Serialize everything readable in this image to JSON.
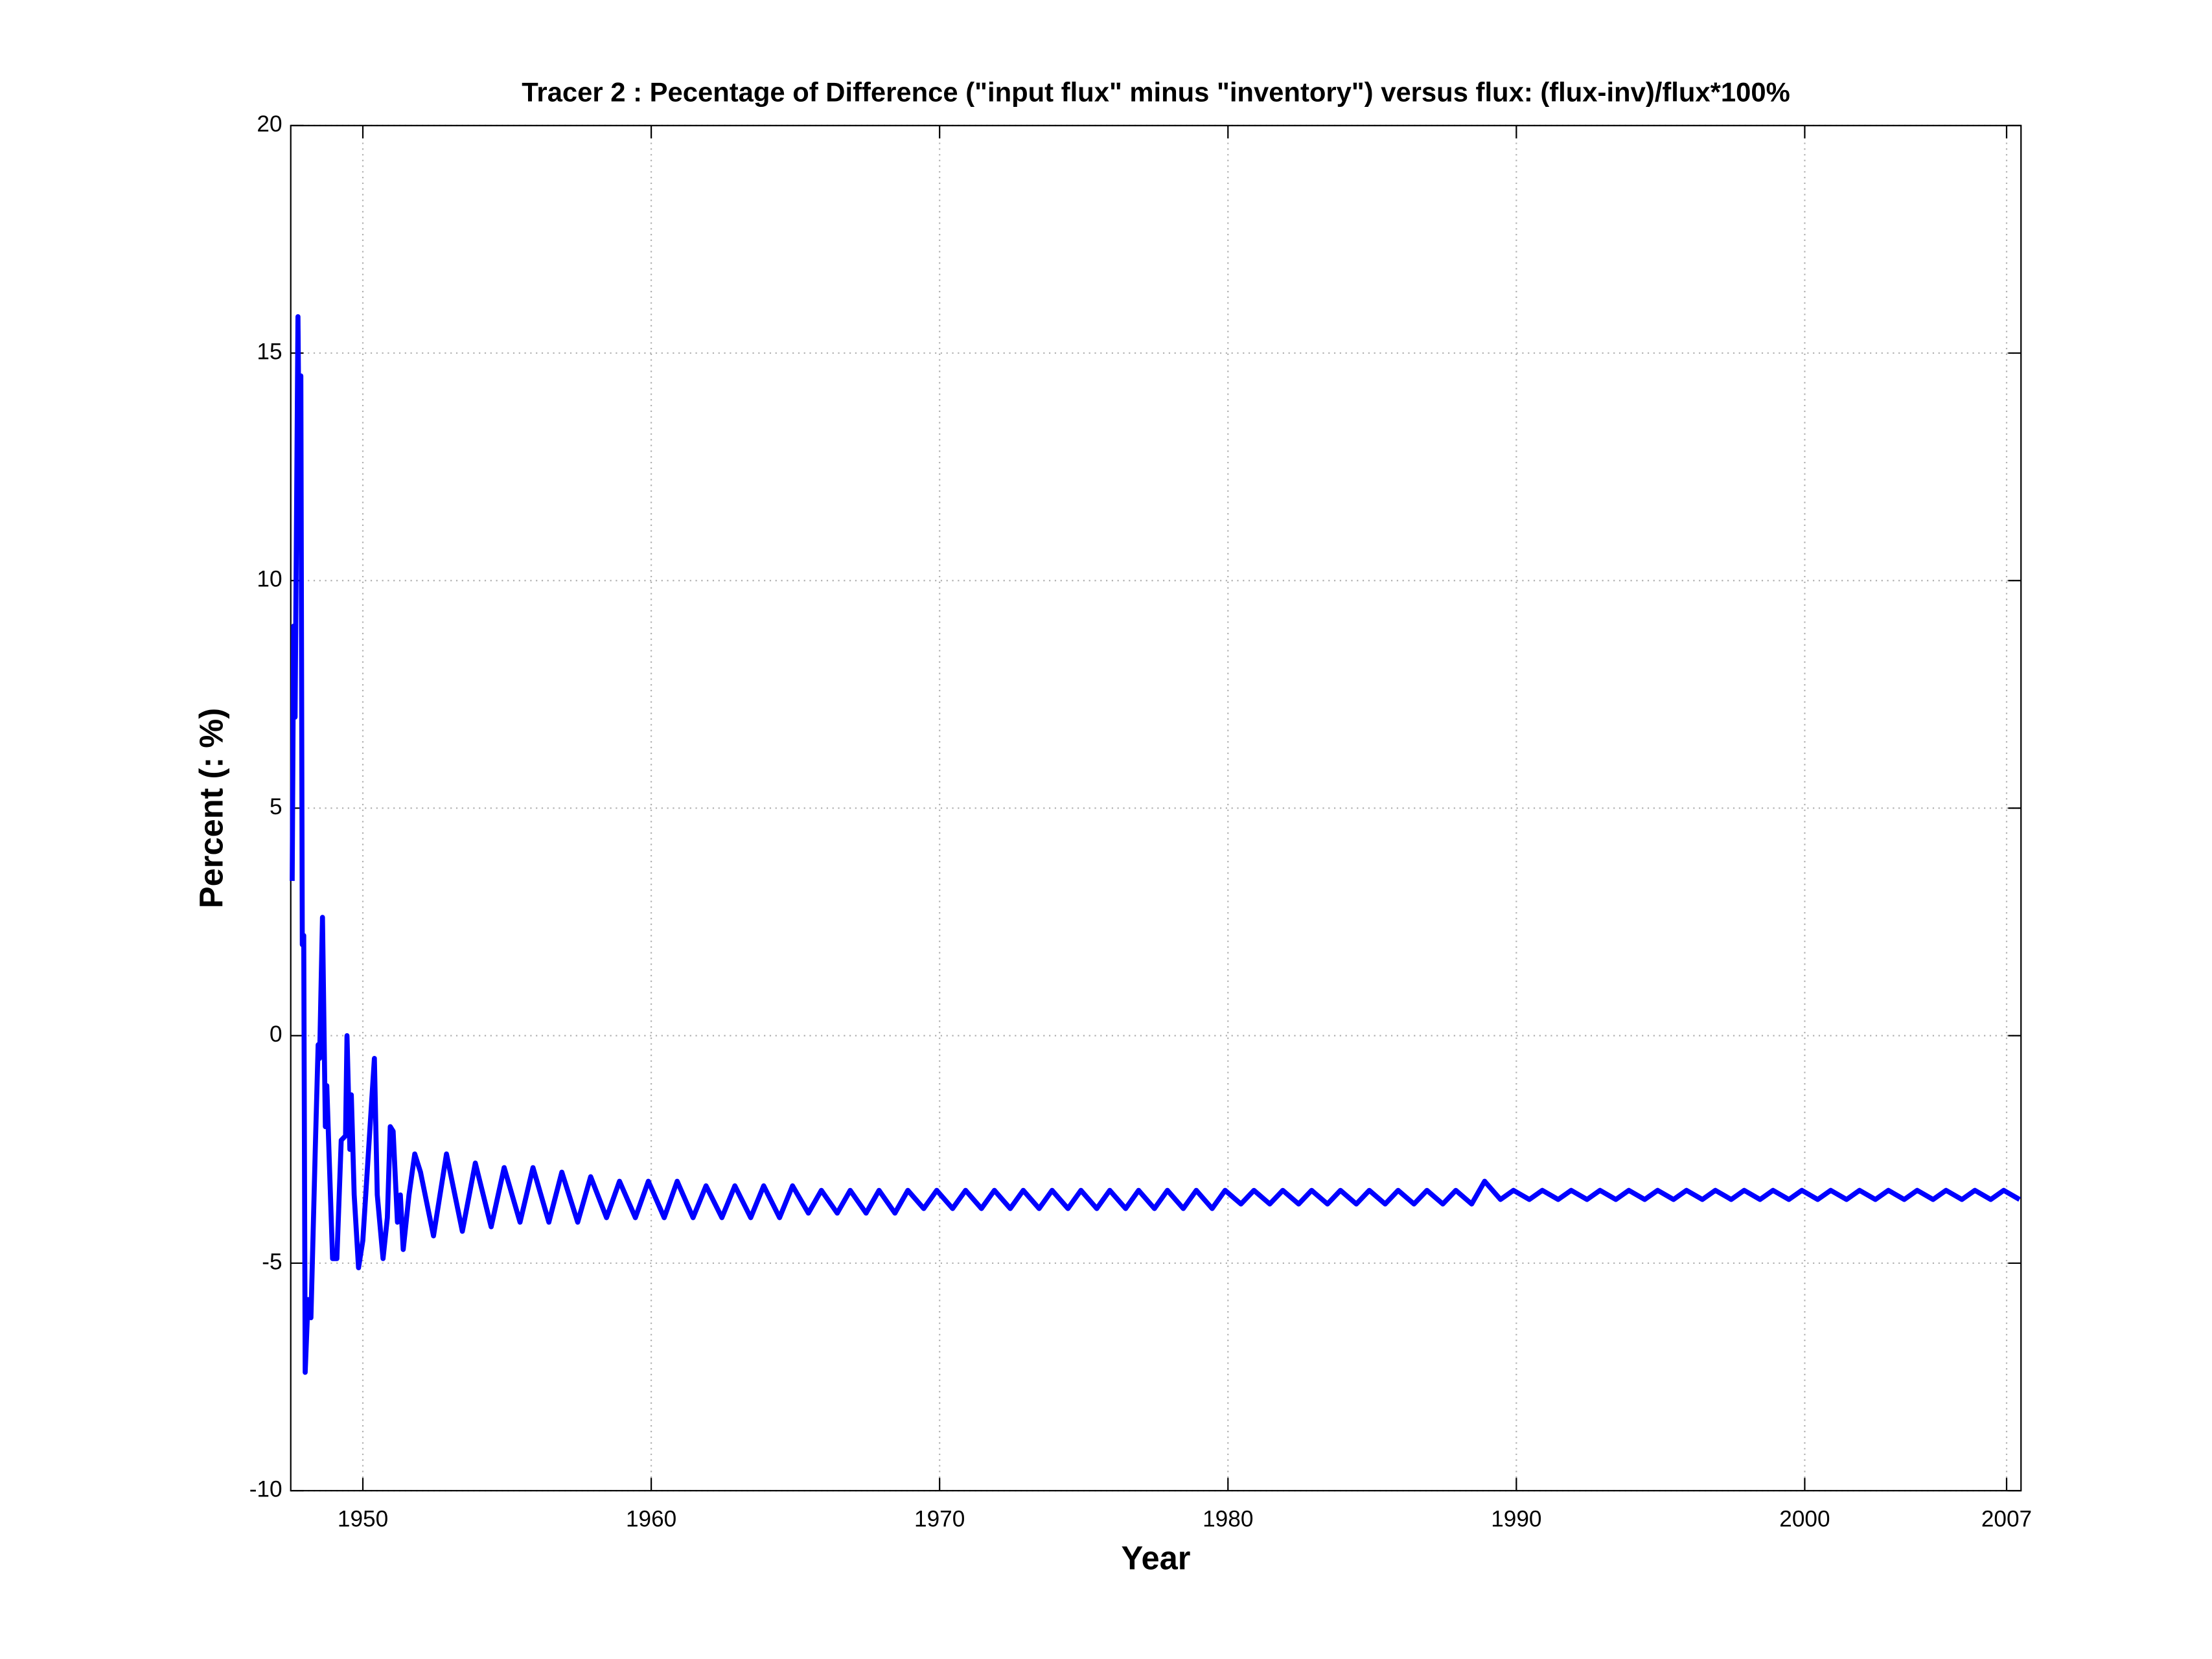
{
  "chart_data": {
    "type": "line",
    "title": "Tracer 2 : Pecentage of Difference (\"input flux\" minus \"inventory\") versus flux: (flux-inv)/flux*100%",
    "x_label": "Year",
    "y_label": "Percent (: %)",
    "xlim": [
      1947.5,
      2007.5
    ],
    "xticks": [
      1950,
      1960,
      1970,
      1980,
      1990,
      2000,
      2007
    ],
    "ylim": [
      -10,
      20
    ],
    "yticks": [
      -10,
      -5,
      0,
      5,
      10,
      15,
      20
    ],
    "grid": true,
    "x": [
      1947.55,
      1947.6,
      1947.65,
      1947.75,
      1947.8,
      1947.85,
      1947.9,
      1947.95,
      1948.0,
      1948.1,
      1948.2,
      1948.35,
      1948.45,
      1948.5,
      1948.6,
      1948.7,
      1948.75,
      1948.85,
      1948.95,
      1949.1,
      1949.25,
      1949.4,
      1949.45,
      1949.55,
      1949.6,
      1949.7,
      1949.85,
      1950.0,
      1950.2,
      1950.4,
      1950.5,
      1950.7,
      1950.85,
      1950.95,
      1951.05,
      1951.2,
      1951.3,
      1951.4,
      1951.6,
      1951.8,
      1952.0,
      1952.45,
      1952.9,
      1953.45,
      1953.9,
      1954.45,
      1954.9,
      1955.45,
      1955.9,
      1956.45,
      1956.9,
      1957.45,
      1957.9,
      1958.45,
      1958.9,
      1959.45,
      1959.9,
      1960.45,
      1960.9,
      1961.45,
      1961.9,
      1962.45,
      1962.9,
      1963.45,
      1963.9,
      1964.45,
      1964.9,
      1965.45,
      1965.9,
      1966.45,
      1966.9,
      1967.45,
      1967.9,
      1968.45,
      1968.9,
      1969.45,
      1969.9,
      1970.45,
      1970.9,
      1971.45,
      1971.9,
      1972.45,
      1972.9,
      1973.45,
      1973.9,
      1974.45,
      1974.9,
      1975.45,
      1975.9,
      1976.45,
      1976.9,
      1977.45,
      1977.9,
      1978.45,
      1978.9,
      1979.45,
      1979.9,
      1980.45,
      1980.9,
      1981.45,
      1981.9,
      1982.45,
      1982.9,
      1983.45,
      1983.9,
      1984.45,
      1984.9,
      1985.45,
      1985.9,
      1986.45,
      1986.9,
      1987.45,
      1987.9,
      1988.45,
      1988.9,
      1989.45,
      1989.9,
      1990.45,
      1990.9,
      1991.45,
      1991.9,
      1992.45,
      1992.9,
      1993.45,
      1993.9,
      1994.45,
      1994.9,
      1995.45,
      1995.9,
      1996.45,
      1996.9,
      1997.45,
      1997.9,
      1998.45,
      1998.9,
      1999.45,
      1999.9,
      2000.45,
      2000.9,
      2001.45,
      2001.9,
      2002.45,
      2002.9,
      2003.45,
      2003.9,
      2004.45,
      2004.9,
      2005.45,
      2005.9,
      2006.45,
      2006.9,
      2007.45
    ],
    "series": [
      {
        "name": "Tracer 2",
        "color": "#0000ff",
        "values": [
          3.4,
          9.0,
          7.0,
          15.8,
          12,
          14.5,
          2.0,
          2.2,
          -7.4,
          -5.8,
          -6.2,
          -2.5,
          -0.2,
          -0.5,
          2.6,
          -2.0,
          -1.1,
          -3.0,
          -4.9,
          -4.9,
          -2.3,
          -2.2,
          0.0,
          -2.5,
          -1.3,
          -3.5,
          -5.1,
          -4.5,
          -2.5,
          -0.5,
          -3.5,
          -4.9,
          -4.0,
          -2.0,
          -2.1,
          -4.1,
          -3.5,
          -4.7,
          -3.5,
          -2.6,
          -3.0,
          -4.4,
          -2.6,
          -4.3,
          -2.8,
          -4.2,
          -2.9,
          -4.1,
          -2.9,
          -4.1,
          -3.0,
          -4.1,
          -3.1,
          -4.0,
          -3.2,
          -4.0,
          -3.2,
          -4.0,
          -3.2,
          -4.0,
          -3.3,
          -4.0,
          -3.3,
          -4.0,
          -3.3,
          -4.0,
          -3.3,
          -3.9,
          -3.4,
          -3.9,
          -3.4,
          -3.9,
          -3.4,
          -3.9,
          -3.4,
          -3.8,
          -3.4,
          -3.8,
          -3.4,
          -3.8,
          -3.4,
          -3.8,
          -3.4,
          -3.8,
          -3.4,
          -3.8,
          -3.4,
          -3.8,
          -3.4,
          -3.8,
          -3.4,
          -3.8,
          -3.4,
          -3.8,
          -3.4,
          -3.8,
          -3.4,
          -3.7,
          -3.4,
          -3.7,
          -3.4,
          -3.7,
          -3.4,
          -3.7,
          -3.4,
          -3.7,
          -3.4,
          -3.7,
          -3.4,
          -3.7,
          -3.4,
          -3.7,
          -3.4,
          -3.7,
          -3.2,
          -3.6,
          -3.4,
          -3.6,
          -3.4,
          -3.6,
          -3.4,
          -3.6,
          -3.4,
          -3.6,
          -3.4,
          -3.6,
          -3.4,
          -3.6,
          -3.4,
          -3.6,
          -3.4,
          -3.6,
          -3.4,
          -3.6,
          -3.4,
          -3.6,
          -3.4,
          -3.6,
          -3.4,
          -3.6,
          -3.4,
          -3.6,
          -3.4,
          -3.6,
          -3.4,
          -3.6,
          -3.4,
          -3.6,
          -3.4,
          -3.6,
          -3.4,
          -3.6
        ]
      }
    ]
  }
}
